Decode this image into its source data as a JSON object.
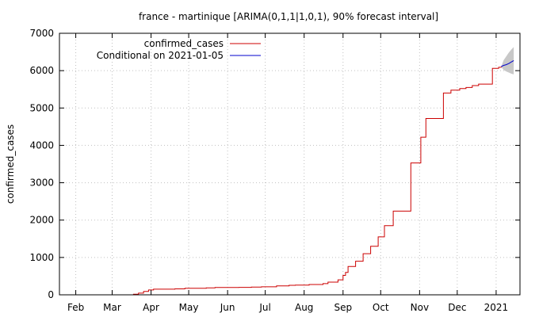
{
  "chart_data": {
    "type": "line",
    "title": "france - martinique [ARIMA(0,1,1|1,0,1), 90% forecast interval]",
    "xlabel": "",
    "ylabel": "confirmed_cases",
    "xlim": [
      "2020-01-19",
      "2021-01-20"
    ],
    "ylim": [
      0,
      7000
    ],
    "grid": true,
    "legend_position": "top-left",
    "y_ticks": [
      "0",
      "1000",
      "2000",
      "3000",
      "4000",
      "5000",
      "6000",
      "7000"
    ],
    "x_ticks": [
      {
        "label": "Feb",
        "date": "2020-02-01"
      },
      {
        "label": "Mar",
        "date": "2020-03-01"
      },
      {
        "label": "Apr",
        "date": "2020-04-01"
      },
      {
        "label": "May",
        "date": "2020-05-01"
      },
      {
        "label": "Jun",
        "date": "2020-06-01"
      },
      {
        "label": "Jul",
        "date": "2020-07-01"
      },
      {
        "label": "Aug",
        "date": "2020-08-01"
      },
      {
        "label": "Sep",
        "date": "2020-09-01"
      },
      {
        "label": "Oct",
        "date": "2020-10-01"
      },
      {
        "label": "Nov",
        "date": "2020-11-01"
      },
      {
        "label": "Dec",
        "date": "2020-12-01"
      },
      {
        "label": "2021",
        "date": "2021-01-01"
      }
    ],
    "series": [
      {
        "name": "confirmed_cases",
        "color": "#cc0000",
        "style": "step",
        "points": [
          [
            "2020-03-14",
            0
          ],
          [
            "2020-03-18",
            15
          ],
          [
            "2020-03-22",
            45
          ],
          [
            "2020-03-26",
            90
          ],
          [
            "2020-03-30",
            130
          ],
          [
            "2020-04-03",
            150
          ],
          [
            "2020-04-20",
            160
          ],
          [
            "2020-04-28",
            175
          ],
          [
            "2020-05-15",
            185
          ],
          [
            "2020-05-22",
            197
          ],
          [
            "2020-06-10",
            200
          ],
          [
            "2020-06-20",
            205
          ],
          [
            "2020-06-28",
            215
          ],
          [
            "2020-07-10",
            240
          ],
          [
            "2020-07-20",
            255
          ],
          [
            "2020-07-25",
            260
          ],
          [
            "2020-08-05",
            275
          ],
          [
            "2020-08-16",
            300
          ],
          [
            "2020-08-20",
            340
          ],
          [
            "2020-08-28",
            400
          ],
          [
            "2020-09-01",
            520
          ],
          [
            "2020-09-03",
            600
          ],
          [
            "2020-09-05",
            760
          ],
          [
            "2020-09-11",
            900
          ],
          [
            "2020-09-17",
            1100
          ],
          [
            "2020-09-23",
            1300
          ],
          [
            "2020-09-29",
            1550
          ],
          [
            "2020-10-04",
            1850
          ],
          [
            "2020-10-11",
            2240
          ],
          [
            "2020-10-25",
            3530
          ],
          [
            "2020-11-02",
            4220
          ],
          [
            "2020-11-06",
            4720
          ],
          [
            "2020-11-20",
            5400
          ],
          [
            "2020-11-26",
            5480
          ],
          [
            "2020-12-03",
            5520
          ],
          [
            "2020-12-08",
            5550
          ],
          [
            "2020-12-13",
            5600
          ],
          [
            "2020-12-18",
            5640
          ],
          [
            "2020-12-29",
            6060
          ],
          [
            "2021-01-03",
            6090
          ],
          [
            "2021-01-05",
            6100
          ]
        ]
      },
      {
        "name": "Conditional on 2021-01-05",
        "color": "#0000cc",
        "style": "line",
        "points": [
          [
            "2021-01-05",
            6110
          ],
          [
            "2021-01-07",
            6140
          ],
          [
            "2021-01-09",
            6160
          ],
          [
            "2021-01-11",
            6190
          ],
          [
            "2021-01-13",
            6230
          ],
          [
            "2021-01-15",
            6270
          ]
        ]
      }
    ],
    "forecast_interval": {
      "color": "#c8c8c8",
      "points": [
        {
          "date": "2021-01-05",
          "lower": 6100,
          "upper": 6100
        },
        {
          "date": "2021-01-07",
          "lower": 6020,
          "upper": 6280
        },
        {
          "date": "2021-01-09",
          "lower": 5980,
          "upper": 6380
        },
        {
          "date": "2021-01-11",
          "lower": 5950,
          "upper": 6480
        },
        {
          "date": "2021-01-13",
          "lower": 5920,
          "upper": 6560
        },
        {
          "date": "2021-01-15",
          "lower": 5900,
          "upper": 6630
        }
      ]
    }
  }
}
